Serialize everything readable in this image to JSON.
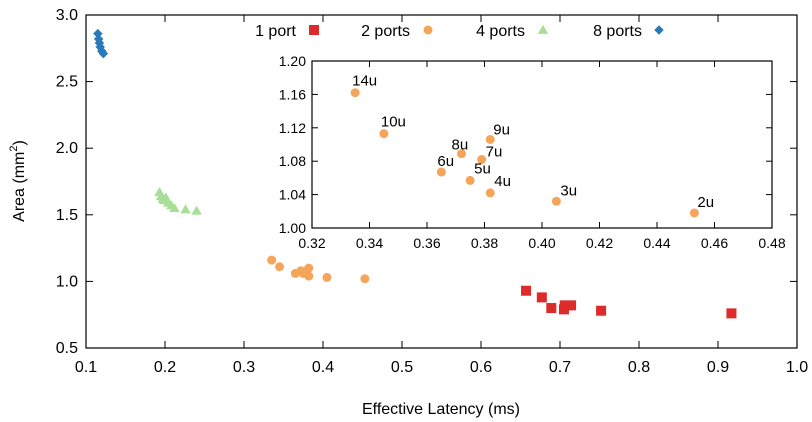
{
  "chart_data": [
    {
      "type": "scatter",
      "title": "",
      "xlabel": "Effective Latency (ms)",
      "ylabel_main": "Area (mm",
      "ylabel_sup": "2",
      "ylabel_close": ")",
      "xlim": [
        0.1,
        1.0
      ],
      "ylim": [
        0.5,
        3.0
      ],
      "xticks": [
        "0.1",
        "0.2",
        "0.3",
        "0.4",
        "0.5",
        "0.6",
        "0.7",
        "0.8",
        "0.9",
        "1.0"
      ],
      "yticks": [
        "0.5",
        "1.0",
        "1.5",
        "2.0",
        "2.5",
        "3.0"
      ],
      "grid": false,
      "legend": "top",
      "series": [
        {
          "name": "1 port",
          "color": "#dd2a2a",
          "marker": "square",
          "points": [
            [
              0.657,
              0.93
            ],
            [
              0.677,
              0.88
            ],
            [
              0.689,
              0.8
            ],
            [
              0.705,
              0.79
            ],
            [
              0.706,
              0.82
            ],
            [
              0.714,
              0.82
            ],
            [
              0.752,
              0.78
            ],
            [
              0.917,
              0.76
            ]
          ]
        },
        {
          "name": "2 ports",
          "color": "#f5a55a",
          "marker": "circle",
          "points": [
            [
              0.335,
              1.16
            ],
            [
              0.345,
              1.11
            ],
            [
              0.365,
              1.06
            ],
            [
              0.372,
              1.08
            ],
            [
              0.375,
              1.06
            ],
            [
              0.379,
              1.08
            ],
            [
              0.382,
              1.1
            ],
            [
              0.382,
              1.04
            ],
            [
              0.405,
              1.03
            ],
            [
              0.453,
              1.02
            ]
          ]
        },
        {
          "name": "4 ports",
          "color": "#a8df97",
          "marker": "triangle",
          "points": [
            [
              0.193,
              1.67
            ],
            [
              0.195,
              1.64
            ],
            [
              0.197,
              1.62
            ],
            [
              0.199,
              1.61
            ],
            [
              0.201,
              1.63
            ],
            [
              0.204,
              1.59
            ],
            [
              0.208,
              1.57
            ],
            [
              0.212,
              1.55
            ],
            [
              0.226,
              1.54
            ],
            [
              0.24,
              1.53
            ]
          ]
        },
        {
          "name": "8 ports",
          "color": "#2a79b8",
          "marker": "diamond",
          "points": [
            [
              0.115,
              2.86
            ],
            [
              0.116,
              2.82
            ],
            [
              0.117,
              2.79
            ],
            [
              0.118,
              2.76
            ],
            [
              0.12,
              2.73
            ],
            [
              0.122,
              2.71
            ]
          ]
        }
      ]
    },
    {
      "type": "scatter",
      "title": "",
      "xlabel": "",
      "ylabel": "",
      "xlim": [
        0.32,
        0.48
      ],
      "ylim": [
        1.0,
        1.2
      ],
      "xticks": [
        "0.32",
        "0.34",
        "0.36",
        "0.38",
        "0.40",
        "0.42",
        "0.44",
        "0.46",
        "0.48"
      ],
      "yticks": [
        "1.00",
        "1.04",
        "1.08",
        "1.12",
        "1.16",
        "1.20"
      ],
      "grid": false,
      "series": [
        {
          "name": "2 ports",
          "color": "#f5a55a",
          "marker": "circle",
          "points": [
            {
              "x": 0.335,
              "y": 1.162,
              "label": "14u"
            },
            {
              "x": 0.345,
              "y": 1.113,
              "label": "10u"
            },
            {
              "x": 0.382,
              "y": 1.106,
              "label": "9u"
            },
            {
              "x": 0.372,
              "y": 1.089,
              "label": "8u"
            },
            {
              "x": 0.379,
              "y": 1.082,
              "label": "7u"
            },
            {
              "x": 0.365,
              "y": 1.067,
              "label": "6u"
            },
            {
              "x": 0.375,
              "y": 1.057,
              "label": "5u"
            },
            {
              "x": 0.382,
              "y": 1.042,
              "label": "4u"
            },
            {
              "x": 0.405,
              "y": 1.032,
              "label": "3u"
            },
            {
              "x": 0.453,
              "y": 1.018,
              "label": "2u"
            }
          ]
        }
      ]
    }
  ]
}
